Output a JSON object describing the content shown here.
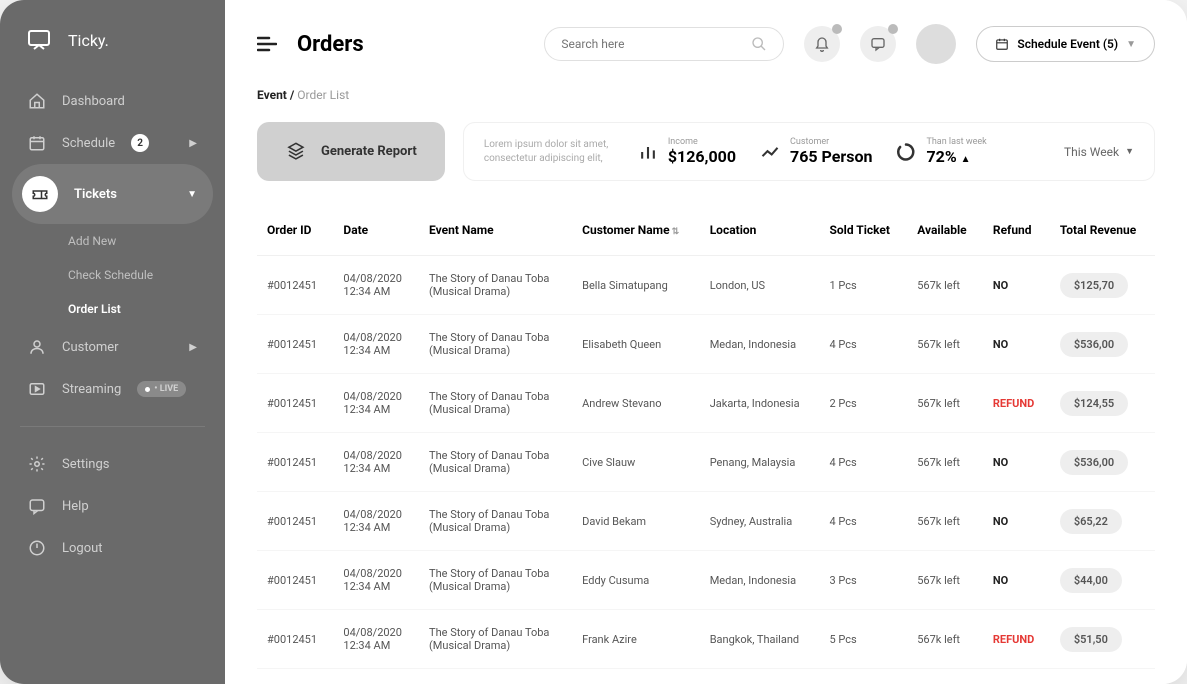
{
  "brand": {
    "name": "Ticky."
  },
  "sidebar": {
    "items": [
      {
        "label": "Dashboard"
      },
      {
        "label": "Schedule",
        "badge": "2",
        "expandable": true
      },
      {
        "label": "Tickets",
        "expandable": true,
        "active": true
      },
      {
        "label": "Customer",
        "expandable": true
      },
      {
        "label": "Streaming",
        "live": "• LIVE"
      }
    ],
    "subitems": [
      {
        "label": "Add New"
      },
      {
        "label": "Check Schedule"
      },
      {
        "label": "Order List",
        "current": true
      }
    ],
    "footer": [
      {
        "label": "Settings"
      },
      {
        "label": "Help"
      },
      {
        "label": "Logout"
      }
    ]
  },
  "header": {
    "title": "Orders",
    "search_placeholder": "Search here",
    "schedule_btn": "Schedule Event (5)"
  },
  "breadcrumb": {
    "root": "Event /",
    "current": "Order List"
  },
  "stats": {
    "generate": "Generate Report",
    "desc": "Lorem ipsum dolor sit amet, consectetur adipiscing elit,",
    "income_label": "Income",
    "income_value": "$126,000",
    "customer_label": "Customer",
    "customer_value": "765 Person",
    "trend_label": "Than last week",
    "trend_value": "72%",
    "period": "This Week"
  },
  "table": {
    "columns": [
      "Order ID",
      "Date",
      "Event Name",
      "Customer Name",
      "Location",
      "Sold Ticket",
      "Available",
      "Refund",
      "Total Revenue"
    ],
    "rows": [
      {
        "id": "#0012451",
        "date": "04/08/2020",
        "time": "12:34 AM",
        "event1": "The Story of Danau Toba",
        "event2": "(Musical Drama)",
        "customer": "Bella Simatupang",
        "location": "London, US",
        "sold": "1 Pcs",
        "avail": "567k left",
        "refund": "NO",
        "revenue": "$125,70"
      },
      {
        "id": "#0012451",
        "date": "04/08/2020",
        "time": "12:34 AM",
        "event1": "The Story of Danau Toba",
        "event2": "(Musical Drama)",
        "customer": "Elisabeth Queen",
        "location": "Medan, Indonesia",
        "sold": "4 Pcs",
        "avail": "567k left",
        "refund": "NO",
        "revenue": "$536,00"
      },
      {
        "id": "#0012451",
        "date": "04/08/2020",
        "time": "12:34 AM",
        "event1": "The Story of Danau Toba",
        "event2": "(Musical Drama)",
        "customer": "Andrew Stevano",
        "location": "Jakarta, Indonesia",
        "sold": "2 Pcs",
        "avail": "567k left",
        "refund": "REFUND",
        "revenue": "$124,55"
      },
      {
        "id": "#0012451",
        "date": "04/08/2020",
        "time": "12:34 AM",
        "event1": "The Story of Danau Toba",
        "event2": "(Musical Drama)",
        "customer": "Cive Slauw",
        "location": "Penang, Malaysia",
        "sold": "4 Pcs",
        "avail": "567k left",
        "refund": "NO",
        "revenue": "$536,00"
      },
      {
        "id": "#0012451",
        "date": "04/08/2020",
        "time": "12:34 AM",
        "event1": "The Story of Danau Toba",
        "event2": "(Musical Drama)",
        "customer": "David Bekam",
        "location": "Sydney, Australia",
        "sold": "4 Pcs",
        "avail": "567k left",
        "refund": "NO",
        "revenue": "$65,22"
      },
      {
        "id": "#0012451",
        "date": "04/08/2020",
        "time": "12:34 AM",
        "event1": "The Story of Danau Toba",
        "event2": "(Musical Drama)",
        "customer": "Eddy Cusuma",
        "location": "Medan, Indonesia",
        "sold": "3 Pcs",
        "avail": "567k left",
        "refund": "NO",
        "revenue": "$44,00"
      },
      {
        "id": "#0012451",
        "date": "04/08/2020",
        "time": "12:34 AM",
        "event1": "The Story of Danau Toba",
        "event2": "(Musical Drama)",
        "customer": "Frank Azire",
        "location": "Bangkok, Thailand",
        "sold": "5 Pcs",
        "avail": "567k left",
        "refund": "REFUND",
        "revenue": "$51,50"
      }
    ]
  },
  "colors": {
    "sidebar_bg": "#6a6a6a",
    "refund_red": "#e53935",
    "pill_bg": "#eeeeee"
  }
}
